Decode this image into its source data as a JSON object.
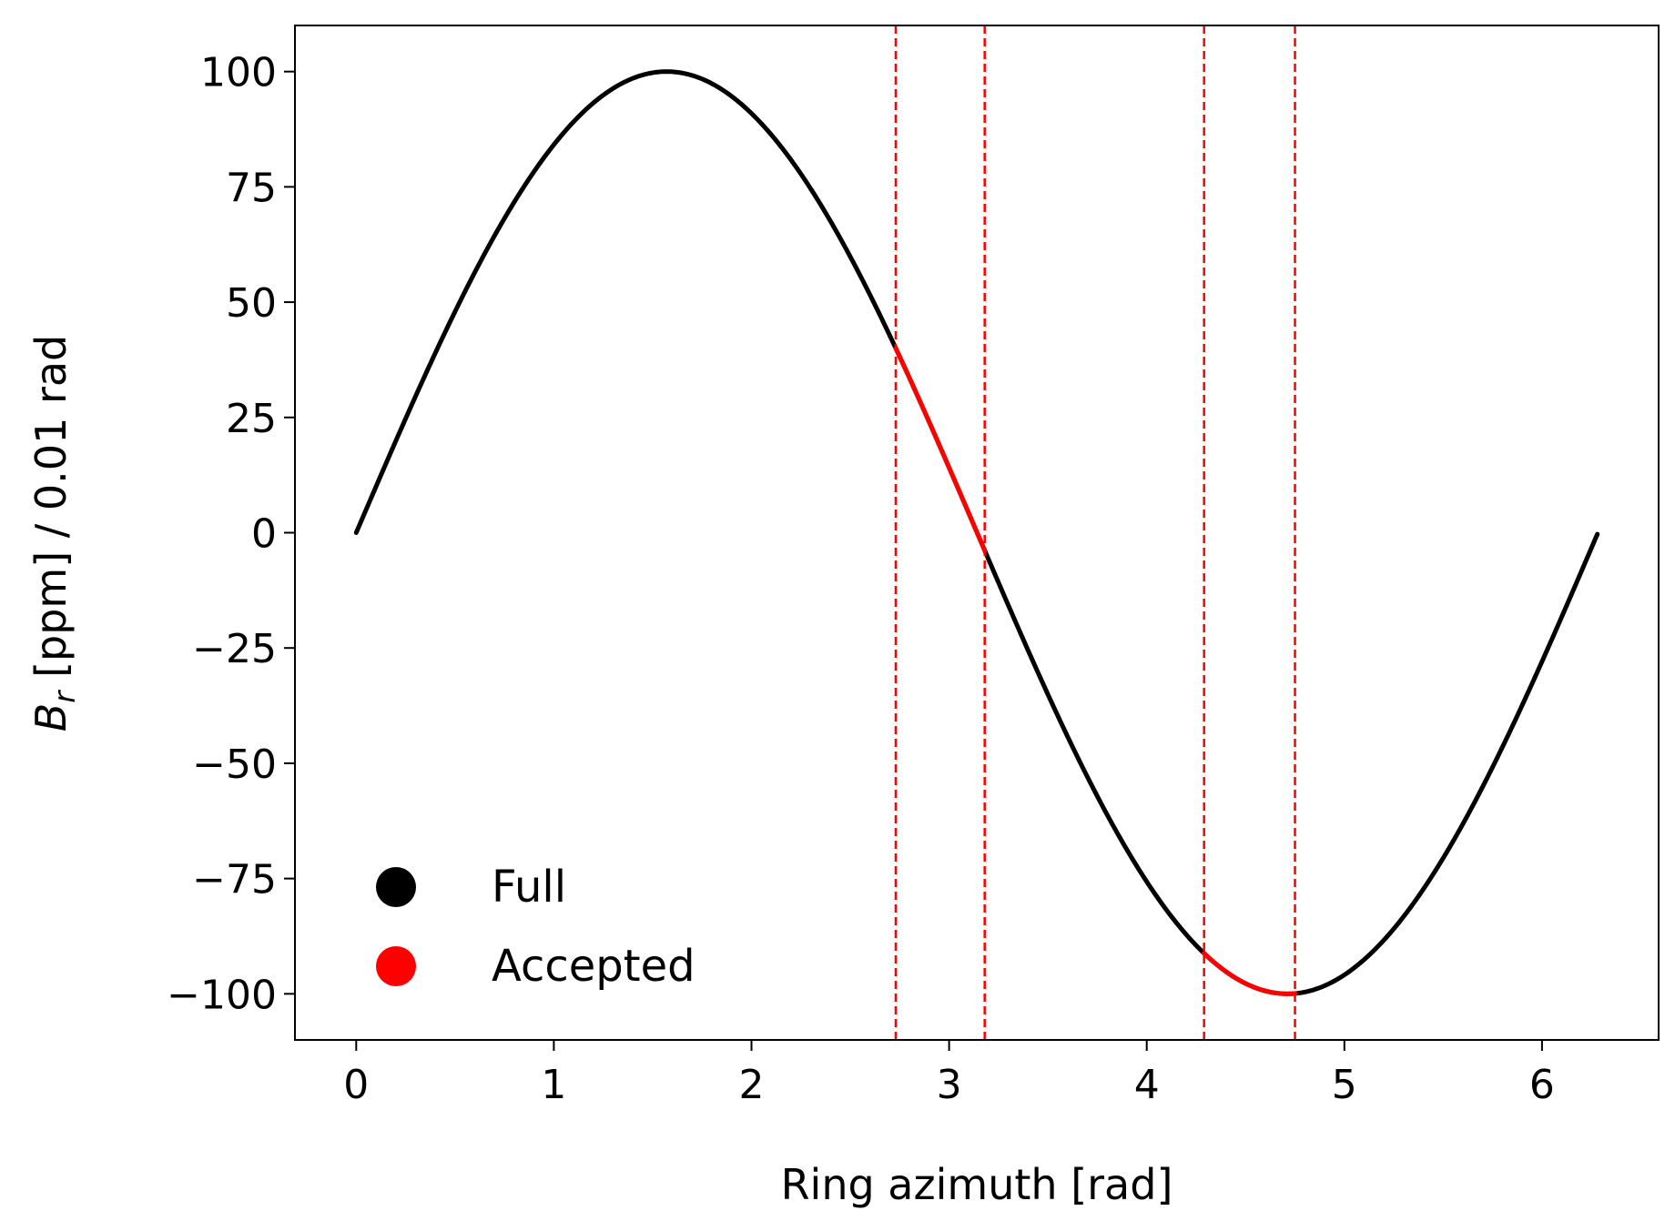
{
  "chart_data": {
    "type": "line",
    "xlabel": "Ring azimuth [rad]",
    "ylabel": {
      "symbol": "B",
      "subscript": "r",
      "rest": " [ppm] / 0.01 rad"
    },
    "xlim": [
      -0.31,
      6.59
    ],
    "ylim": [
      -110,
      110
    ],
    "xticks": [
      0,
      1,
      2,
      3,
      4,
      5,
      6
    ],
    "yticks": [
      100,
      75,
      50,
      25,
      0,
      -25,
      -50,
      -75,
      -100
    ],
    "ytick_labels": [
      "100",
      "75",
      "50",
      "25",
      "0",
      "−25",
      "−50",
      "−75",
      "−100"
    ],
    "grid": false,
    "legend_position": "bottom-left",
    "series": [
      {
        "name": "Full",
        "color": "#000000",
        "function": "100*sin(x)",
        "x_range": [
          0,
          6.28
        ],
        "points": 600
      },
      {
        "name": "Accepted",
        "color": "#ff0000",
        "function": "100*sin(x)",
        "x_ranges": [
          [
            2.73,
            3.18
          ],
          [
            4.29,
            4.75
          ]
        ]
      }
    ],
    "vlines": {
      "x": [
        2.73,
        3.18,
        4.29,
        4.75
      ],
      "color": "#ff0000",
      "style": "dashed"
    },
    "legend": [
      {
        "label": "Full",
        "color": "#000000"
      },
      {
        "label": "Accepted",
        "color": "#ff0000"
      }
    ]
  }
}
